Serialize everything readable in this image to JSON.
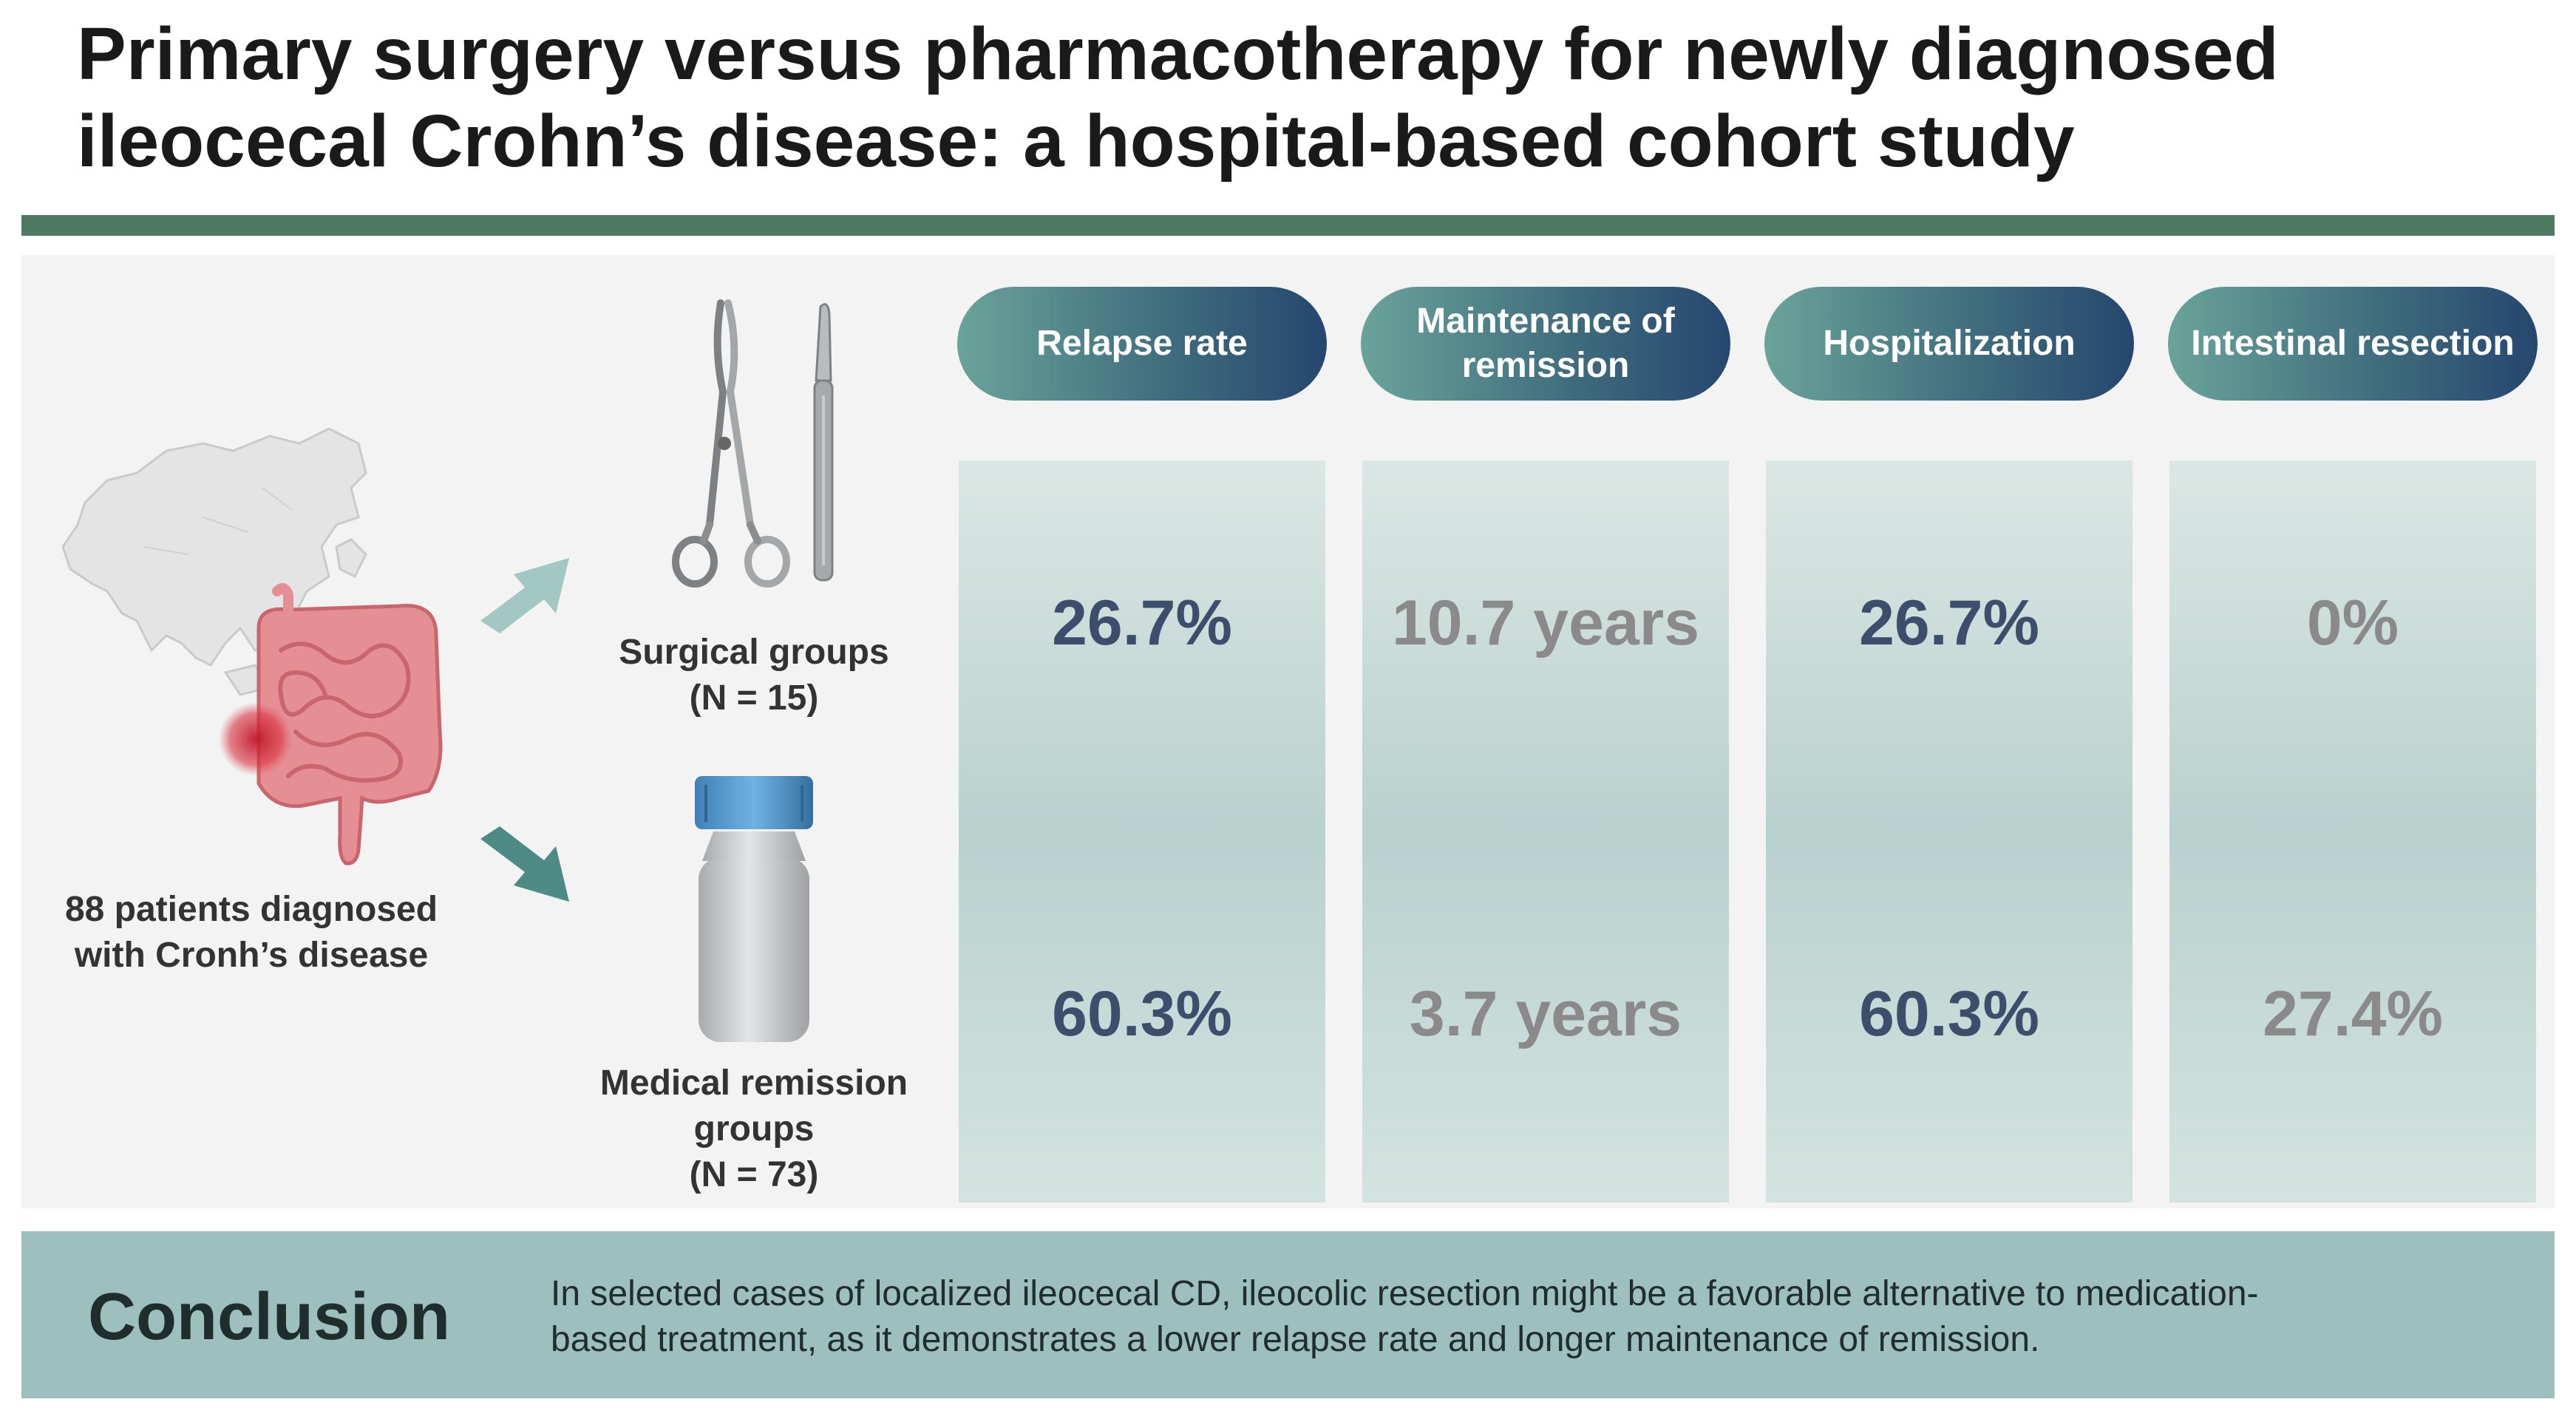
{
  "title": {
    "line1": "Primary surgery versus pharmacotherapy for newly diagnosed",
    "line2": "ileocecal Crohn’s disease: a hospital-based cohort study"
  },
  "cohort": {
    "line1": "88 patients diagnosed",
    "line2": "with Cronh’s disease"
  },
  "groups": {
    "surgical": {
      "line1": "Surgical groups",
      "line2": "(N = 15)"
    },
    "medical": {
      "line1": "Medical remission",
      "line2": "groups",
      "line3": "(N = 73)"
    }
  },
  "outcomes": [
    {
      "header1": "Relapse rate",
      "header2": "",
      "surgical": "26.7%",
      "medical": "60.3%"
    },
    {
      "header1": "Maintenance of",
      "header2": "remission",
      "surgical": "10.7 years",
      "medical": "3.7 years"
    },
    {
      "header1": "Hospitalization",
      "header2": "",
      "surgical": "26.7%",
      "medical": "60.3%"
    },
    {
      "header1": "Intestinal resection",
      "header2": "",
      "surgical": "0%",
      "medical": "27.4%"
    }
  ],
  "conclusion": {
    "label": "Conclusion",
    "line1": "In selected cases of localized ileocecal CD, ileocolic resection might be a favorable alternative to medication-",
    "line2": "based treatment, as it demonstrates a lower relapse rate and longer maintenance of remission."
  },
  "colors": {
    "accent_green": "#4e7a63",
    "pill_start": "#6aa39a",
    "pill_end": "#26466f",
    "value_dark": "#3c4e6b",
    "value_gray": "#8a8a8a",
    "conclusion_bg": "#9dbfbd"
  },
  "icons": [
    "asia-map-icon",
    "intestine-icon",
    "inflammation-spot-icon",
    "arrow-up-right-icon",
    "arrow-down-right-icon",
    "hemostat-forceps-icon",
    "scalpel-icon",
    "medicine-bottle-icon"
  ]
}
